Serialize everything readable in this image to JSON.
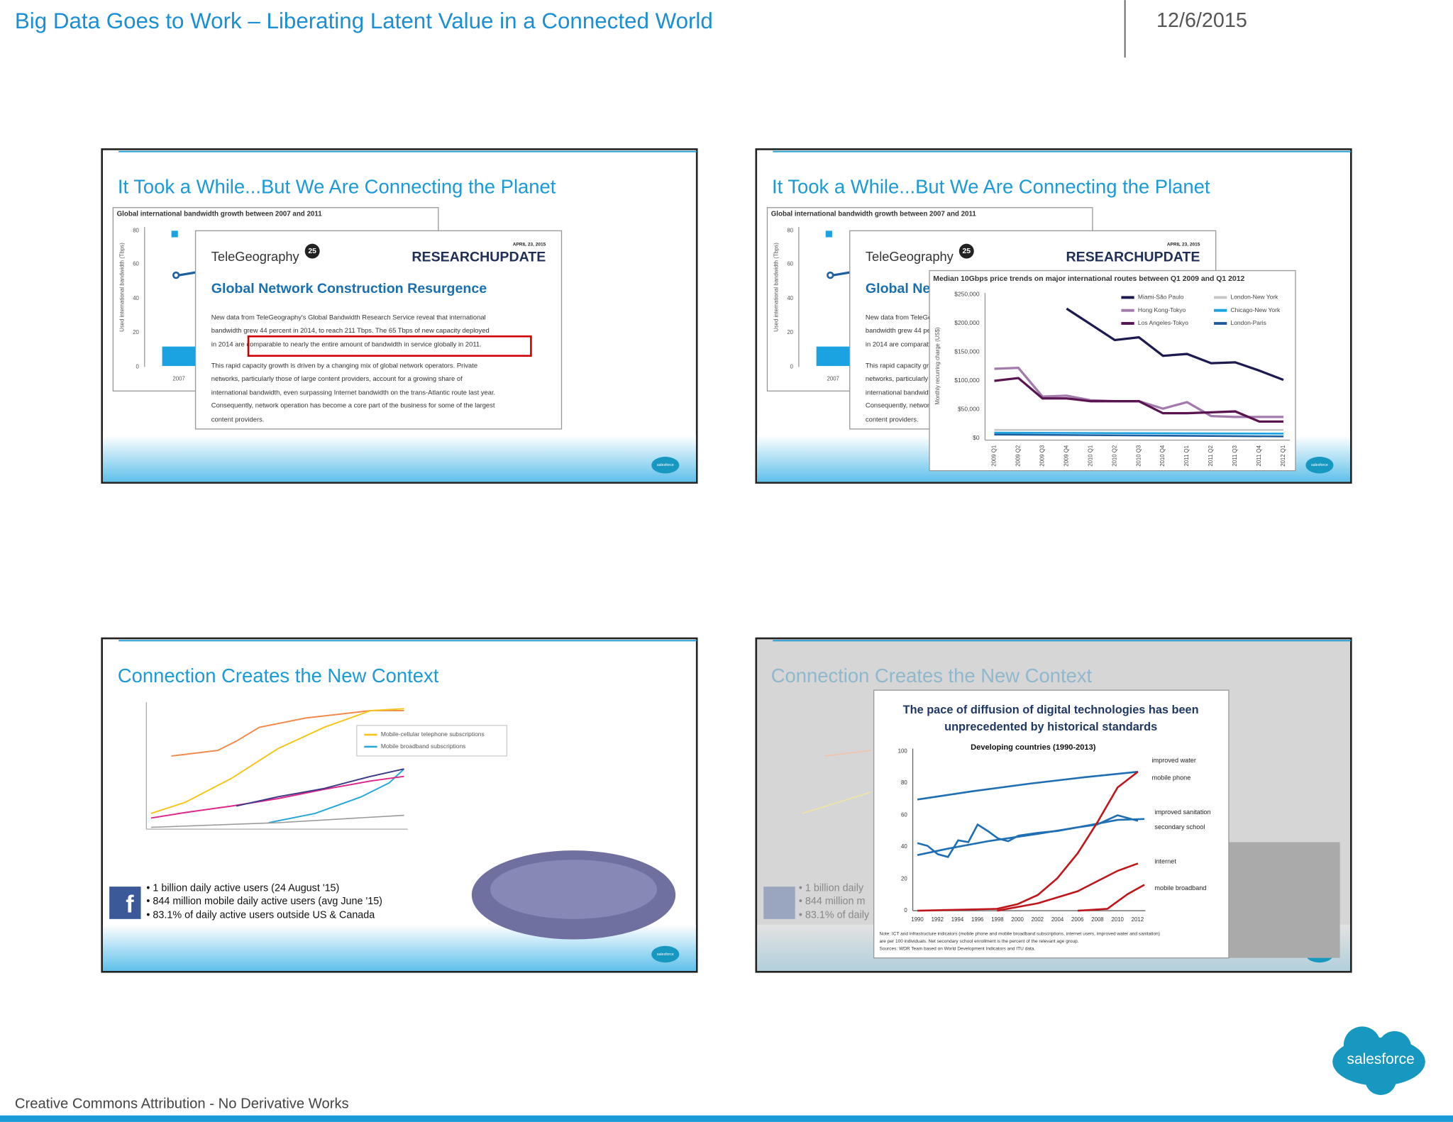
{
  "header": {
    "title": "Big Data Goes to Work – Liberating Latent Value in a Connected World",
    "date": "12/6/2015"
  },
  "slides": [
    {
      "title": "It Took a While...But We Are Connecting the Planet",
      "chart": {
        "title": "Global international bandwidth growth between 2007 and 2011",
        "y_label": "Used international bandwidth (Tbps)",
        "yticks": [
          "80",
          "60",
          "40",
          "20",
          "0"
        ],
        "x_label": "2007"
      },
      "report": {
        "brand": "TeleGeography",
        "badge": "25",
        "date": "APRIL 23, 2015",
        "tag": "RESEARCHUPDATE",
        "headline": "Global Network Construction Resurgence",
        "lines": [
          "New data from TeleGeography's Global Bandwidth Research Service reveal that international",
          "bandwidth grew 44 percent in 2014, to reach 211 Tbps. The 65 Tbps of new capacity deployed",
          "in 2014 are comparable to nearly the entire amount of bandwidth in service globally in 2011.",
          "This rapid capacity growth is driven by a changing mix of global network operators. Private",
          "networks, particularly those of large content providers, account for a growing share of",
          "international bandwidth, even surpassing Internet bandwidth on the trans-Atlantic route last year.",
          "Consequently, network operation has become a core part of the business for some of the largest",
          "content providers."
        ]
      }
    },
    {
      "title": "It Took a While...But We Are Connecting the Planet",
      "overlay": {
        "title": "Median 10Gbps price trends on major international routes between Q1 2009 and Q1 2012",
        "y_label": "Monthly recurring charge (US$)",
        "yticks": [
          "$250,000",
          "$200,000",
          "$150,000",
          "$100,000",
          "$50,000",
          "$0"
        ],
        "categories": [
          "2009 Q1",
          "2009 Q2",
          "2009 Q3",
          "2009 Q4",
          "2010 Q1",
          "2010 Q2",
          "2010 Q3",
          "2010 Q4",
          "2011 Q1",
          "2011 Q2",
          "2011 Q3",
          "2011 Q4",
          "2012 Q1"
        ],
        "legend": [
          "Miami-São Paulo",
          "London-New York",
          "Hong Kong-Tokyo",
          "Chicago-New York",
          "Los Angeles-Tokyo",
          "London-Paris"
        ]
      }
    },
    {
      "title": "Connection Creates the New Context",
      "legend": [
        "Mobile-cellular telephone subscriptions",
        "Mobile broadband subscriptions"
      ],
      "bullets": [
        "• 1 billion daily active users (24 August '15)",
        "• 844 million mobile daily active users (avg June '15)",
        "• 83.1% of daily active users outside US & Canada"
      ],
      "icon": "f"
    },
    {
      "title": "Connection Creates the New Context",
      "chart": {
        "title": [
          "The pace of diffusion of digital technologies has been",
          "unprecedented by historical standards"
        ],
        "subtitle": "Developing countries (1990-2013)",
        "yticks": [
          "100",
          "80",
          "60",
          "40",
          "20",
          "0"
        ],
        "xticks": [
          "1990",
          "1992",
          "1994",
          "1996",
          "1998",
          "2000",
          "2002",
          "2004",
          "2006",
          "2008",
          "2010",
          "2012"
        ],
        "labels": [
          "improved water",
          "mobile phone",
          "improved sanitation",
          "secondary school",
          "internet",
          "mobile broadband"
        ],
        "note": [
          "Note: ICT and infrastructure indicators (mobile phone and mobile broadband subscriptions, internet users, improved water and sanitation)",
          "are per 100 individuals. Net secondary school enrollment is the percent of the relevant age group.",
          "Sources: WDR Team based on World Development Indicators and ITU data."
        ]
      },
      "bullets": [
        "• 1 billion daily",
        "• 844 million m",
        "• 83.1% of daily"
      ]
    }
  ],
  "footer": {
    "license": "Creative Commons Attribution - No Derivative Works",
    "logo": "salesforce",
    "logo_small": "salesforce"
  }
}
